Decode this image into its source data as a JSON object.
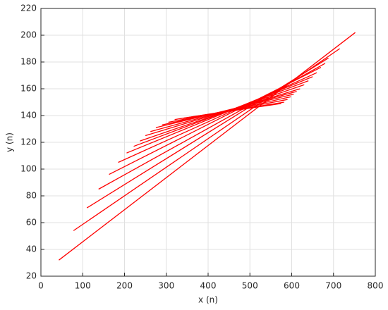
{
  "chart_data": {
    "type": "line",
    "xlabel": "x (n)",
    "ylabel": "y (n)",
    "color": "#ff0000",
    "grid": true,
    "xlim": [
      0,
      800
    ],
    "xticks": [
      0,
      100,
      200,
      300,
      400,
      500,
      600,
      700,
      800
    ],
    "ylim": [
      20,
      220
    ],
    "yticks": [
      20,
      40,
      60,
      80,
      100,
      120,
      140,
      160,
      180,
      200,
      220
    ],
    "series": [
      {
        "x": [
          43,
          752
        ],
        "values": [
          32,
          202
        ]
      },
      {
        "x": [
          78,
          715
        ],
        "values": [
          54,
          190
        ]
      },
      {
        "x": [
          110,
          688
        ],
        "values": [
          71,
          183
        ]
      },
      {
        "x": [
          138,
          680
        ],
        "values": [
          85,
          179
        ]
      },
      {
        "x": [
          163,
          670
        ],
        "values": [
          96,
          176
        ]
      },
      {
        "x": [
          185,
          660
        ],
        "values": [
          105,
          172
        ]
      },
      {
        "x": [
          205,
          650
        ],
        "values": [
          112,
          169
        ]
      },
      {
        "x": [
          222,
          640
        ],
        "values": [
          117,
          166
        ]
      },
      {
        "x": [
          237,
          630
        ],
        "values": [
          121,
          163
        ]
      },
      {
        "x": [
          250,
          620
        ],
        "values": [
          125,
          160
        ]
      },
      {
        "x": [
          262,
          612
        ],
        "values": [
          128,
          158
        ]
      },
      {
        "x": [
          275,
          605
        ],
        "values": [
          131,
          156
        ]
      },
      {
        "x": [
          290,
          598
        ],
        "values": [
          133,
          154
        ]
      },
      {
        "x": [
          305,
          590
        ],
        "values": [
          135,
          152
        ]
      },
      {
        "x": [
          320,
          582
        ],
        "values": [
          137,
          150
        ]
      },
      {
        "x": [
          340,
          575
        ],
        "values": [
          138,
          149
        ]
      }
    ]
  }
}
